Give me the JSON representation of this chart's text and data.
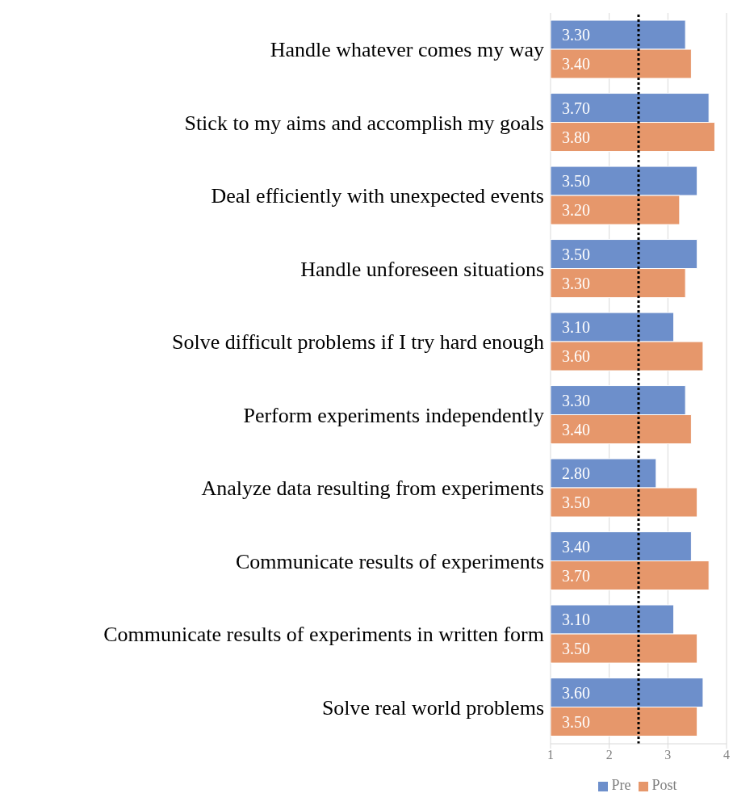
{
  "chart_data": {
    "type": "bar",
    "orientation": "horizontal",
    "categories": [
      "Handle whatever comes my way",
      "Stick to my aims and accomplish my goals",
      "Deal efficiently with unexpected events",
      "Handle unforeseen situations",
      "Solve difficult problems if I try hard enough",
      "Perform experiments independently",
      "Analyze data resulting from experiments",
      "Communicate results of experiments",
      "Communicate results of experiments in written form",
      "Solve real world problems"
    ],
    "series": [
      {
        "name": "Pre",
        "color": "#6d8fcb",
        "values": [
          3.3,
          3.7,
          3.5,
          3.5,
          3.1,
          3.3,
          2.8,
          3.4,
          3.1,
          3.6
        ],
        "value_labels": [
          "3.30",
          "3.70",
          "3.50",
          "3.50",
          "3.10",
          "3.30",
          "2.80",
          "3.40",
          "3.10",
          "3.60"
        ]
      },
      {
        "name": "Post",
        "color": "#e6976b",
        "values": [
          3.4,
          3.8,
          3.2,
          3.3,
          3.6,
          3.4,
          3.5,
          3.7,
          3.5,
          3.5
        ],
        "value_labels": [
          "3.40",
          "3.80",
          "3.20",
          "3.30",
          "3.60",
          "3.40",
          "3.50",
          "3.70",
          "3.50",
          "3.50"
        ]
      }
    ],
    "xlim": [
      1,
      4
    ],
    "xticks": [
      1,
      2,
      3,
      4
    ],
    "grid": "x",
    "legend": "bottom",
    "ref_lines": [
      {
        "axis": "x",
        "value": 2.5,
        "color": "#000000",
        "line_style": "dotted"
      }
    ]
  }
}
